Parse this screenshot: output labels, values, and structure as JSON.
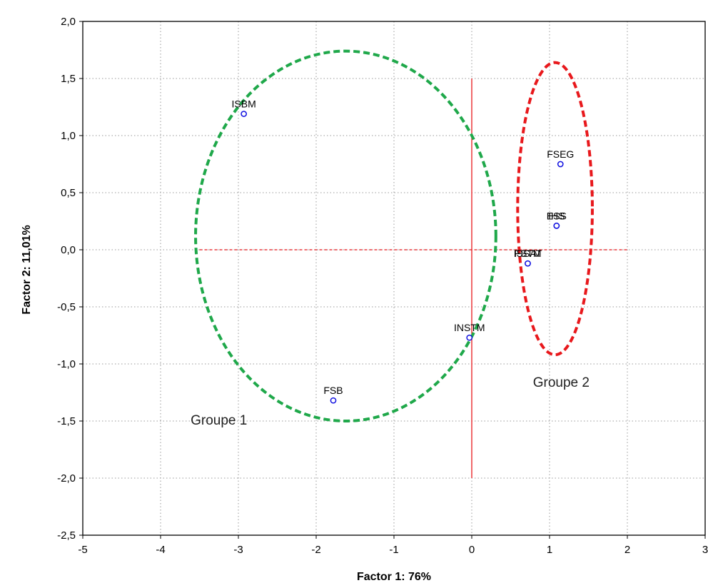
{
  "chart_data": {
    "type": "scatter",
    "xlabel": "Factor 1: 76%",
    "ylabel": "Factor 2: 11,01%",
    "xlim": [
      -5,
      3
    ],
    "ylim": [
      -2.5,
      2.0
    ],
    "xticks": [
      -5,
      -4,
      -3,
      -2,
      -1,
      0,
      1,
      2,
      3
    ],
    "yticks": [
      -2.5,
      -2.0,
      -1.5,
      -1.0,
      -0.5,
      0.0,
      0.5,
      1.0,
      1.5,
      2.0
    ],
    "x_tick_labels": [
      "-5",
      "-4",
      "-3",
      "-2",
      "-1",
      "0",
      "1",
      "2",
      "3"
    ],
    "y_tick_labels": [
      "-2,5",
      "-2,0",
      "-1,5",
      "-1,0",
      "-0,5",
      "0,0",
      "0,5",
      "1,0",
      "1,5",
      "2,0"
    ],
    "grid": true,
    "points": [
      {
        "label": "ISBM",
        "x": -2.93,
        "y": 1.19
      },
      {
        "label": "FSB",
        "x": -1.78,
        "y": -1.32
      },
      {
        "label": "INSTM",
        "x": -0.03,
        "y": -0.77
      },
      {
        "label": "FSEG",
        "x": 1.14,
        "y": 0.75
      },
      {
        "label": "ESS",
        "x": 1.09,
        "y": 0.21
      },
      {
        "label": "IHS",
        "x": 1.09,
        "y": 0.21
      },
      {
        "label": "ISSAT",
        "x": 0.72,
        "y": -0.12
      },
      {
        "label": "FSTM",
        "x": 0.72,
        "y": -0.12
      }
    ],
    "groups": [
      {
        "label": "Groupe 1",
        "color": "#1fa84a",
        "center": [
          -1.62,
          0.12
        ],
        "radius_x": 1.93,
        "radius_y": 1.62
      },
      {
        "label": "Groupe 2",
        "color": "#e8181c",
        "center": [
          1.07,
          0.36
        ],
        "radius_x": 0.48,
        "radius_y": 1.28
      }
    ],
    "reference_lines": {
      "color": "#e8181c",
      "horizontal_y": 0.0,
      "vertical_x": 0.0
    },
    "colors": {
      "points": "#1010e0",
      "grid": "#9a9a9a",
      "frame": "#000000"
    }
  }
}
